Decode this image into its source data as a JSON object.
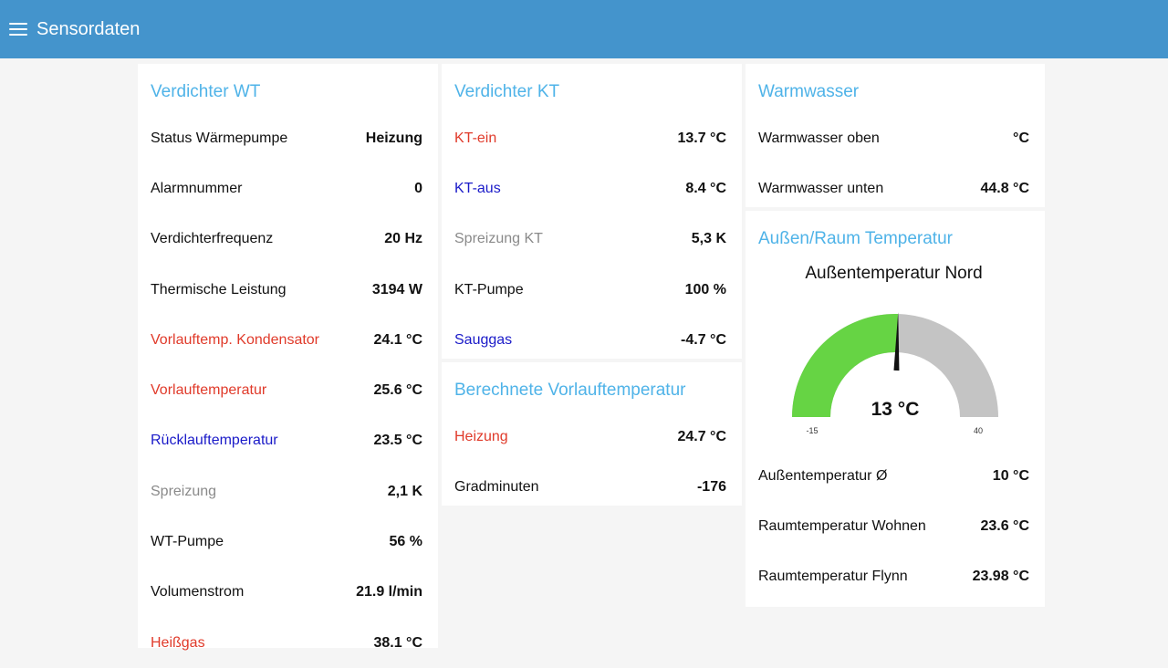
{
  "app": {
    "title": "Sensordaten"
  },
  "cards": {
    "wt": {
      "title": "Verdichter WT",
      "rows": [
        {
          "label": "Status Wärmepumpe",
          "value": "Heizung",
          "color": "default"
        },
        {
          "label": "Alarmnummer",
          "value": "0",
          "color": "default"
        },
        {
          "label": "Verdichterfrequenz",
          "value": "20 Hz",
          "color": "default"
        },
        {
          "label": "Thermische Leistung",
          "value": "3194 W",
          "color": "default"
        },
        {
          "label": "Vorlauftemp. Kondensator",
          "value": "24.1 °C",
          "color": "red"
        },
        {
          "label": "Vorlauftemperatur",
          "value": "25.6 °C",
          "color": "red"
        },
        {
          "label": "Rücklauftemperatur",
          "value": "23.5 °C",
          "color": "blue"
        },
        {
          "label": "Spreizung",
          "value": "2,1 K",
          "color": "gray"
        },
        {
          "label": "WT-Pumpe",
          "value": "56 %",
          "color": "default"
        },
        {
          "label": "Volumenstrom",
          "value": "21.9 l/min",
          "color": "default"
        },
        {
          "label": "Heißgas",
          "value": "38.1 °C",
          "color": "red"
        }
      ]
    },
    "kt": {
      "title": "Verdichter KT",
      "rows": [
        {
          "label": "KT-ein",
          "value": "13.7 °C",
          "color": "red"
        },
        {
          "label": "KT-aus",
          "value": "8.4 °C",
          "color": "blue"
        },
        {
          "label": "Spreizung KT",
          "value": "5,3 K",
          "color": "gray"
        },
        {
          "label": "KT-Pumpe",
          "value": "100 %",
          "color": "default"
        },
        {
          "label": "Sauggas",
          "value": "-4.7 °C",
          "color": "blue"
        }
      ]
    },
    "vorlauf": {
      "title": "Berechnete Vorlauftemperatur",
      "rows": [
        {
          "label": "Heizung",
          "value": "24.7 °C",
          "color": "red"
        },
        {
          "label": "Gradminuten",
          "value": "-176",
          "color": "default"
        }
      ]
    },
    "ww": {
      "title": "Warmwasser",
      "rows": [
        {
          "label": "Warmwasser oben",
          "value": "°C",
          "color": "default"
        },
        {
          "label": "Warmwasser unten",
          "value": "44.8 °C",
          "color": "default"
        }
      ]
    },
    "aussen": {
      "title": "Außen/Raum Temperatur",
      "gauge": {
        "title": "Außentemperatur Nord",
        "value": 13,
        "value_label": "13 °C",
        "min": -15,
        "max": 40,
        "min_label": "-15",
        "max_label": "40",
        "fill_color": "#66d444",
        "track_color": "#c4c4c4"
      },
      "rows": [
        {
          "label": "Außentemperatur Ø",
          "value": "10 °C",
          "color": "default"
        },
        {
          "label": "Raumtemperatur Wohnen",
          "value": "23.6 °C",
          "color": "default"
        },
        {
          "label": "Raumtemperatur Flynn",
          "value": "23.98 °C",
          "color": "default"
        }
      ]
    }
  }
}
